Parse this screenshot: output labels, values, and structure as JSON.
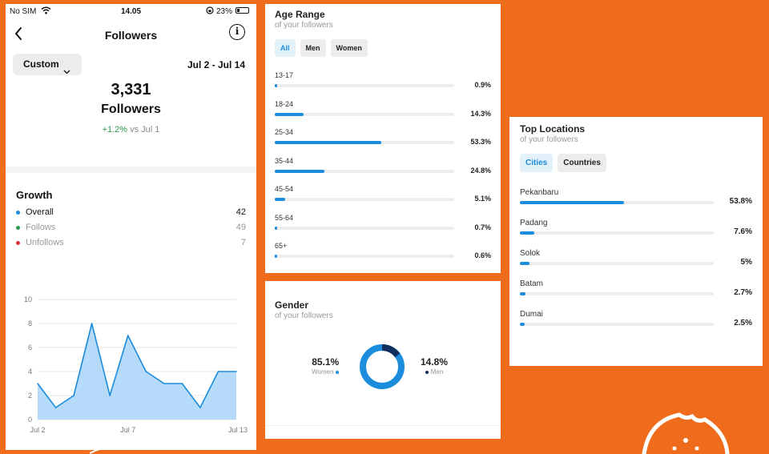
{
  "status_bar": {
    "carrier": "No SIM",
    "time": "14.05",
    "battery": "23%"
  },
  "header": {
    "title": "Followers"
  },
  "filter": {
    "range_button": "Custom",
    "date_range": "Jul 2 - Jul 14"
  },
  "summary": {
    "count": "3,331",
    "label": "Followers",
    "change": "+1.2%",
    "change_suffix": "vs Jul 1"
  },
  "growth": {
    "title": "Growth",
    "legend": [
      {
        "name": "Overall",
        "value": "42",
        "color": "#1b8ddc"
      },
      {
        "name": "Follows",
        "value": "49",
        "color": "#2e9a4e"
      },
      {
        "name": "Unfollows",
        "value": "7",
        "color": "#e0323d"
      }
    ]
  },
  "chart_data": {
    "type": "area",
    "x": [
      "Jul 2",
      "Jul 3",
      "Jul 4",
      "Jul 5",
      "Jul 6",
      "Jul 7",
      "Jul 8",
      "Jul 9",
      "Jul 10",
      "Jul 11",
      "Jul 12",
      "Jul 13"
    ],
    "values": [
      3,
      1,
      2,
      8,
      2,
      7,
      4,
      3,
      3,
      1,
      4,
      4
    ],
    "xtick_labels": [
      "Jul 2",
      "Jul 7",
      "Jul 13"
    ],
    "ytick_labels": [
      "0",
      "2",
      "4",
      "6",
      "8",
      "10"
    ],
    "ylim": [
      0,
      10
    ],
    "grid": true,
    "color": "#1b8ddc",
    "fill": "#b5dafa"
  },
  "age": {
    "title": "Age Range",
    "subtitle": "of your followers",
    "tabs": [
      "All",
      "Men",
      "Women"
    ],
    "rows": [
      {
        "label": "13-17",
        "pct_text": "0.9%",
        "pct": 0.9
      },
      {
        "label": "18-24",
        "pct_text": "14.3%",
        "pct": 14.3
      },
      {
        "label": "25-34",
        "pct_text": "53.3%",
        "pct": 53.3
      },
      {
        "label": "35-44",
        "pct_text": "24.8%",
        "pct": 24.8
      },
      {
        "label": "45-54",
        "pct_text": "5.1%",
        "pct": 5.1
      },
      {
        "label": "55-64",
        "pct_text": "0.7%",
        "pct": 0.7
      },
      {
        "label": "65+",
        "pct_text": "0.6%",
        "pct": 0.6
      }
    ]
  },
  "gender": {
    "title": "Gender",
    "subtitle": "of your followers",
    "women": {
      "pct_text": "85.1%",
      "label": "Women",
      "pct": 85.1,
      "color": "#1b8ddc"
    },
    "men": {
      "pct_text": "14.8%",
      "label": "Men",
      "pct": 14.8,
      "color": "#0f2f5f"
    }
  },
  "locations": {
    "title": "Top Locations",
    "subtitle": "of your followers",
    "tabs": [
      "Cities",
      "Countries"
    ],
    "rows": [
      {
        "label": "Pekanbaru",
        "pct_text": "53.8%",
        "pct": 53.8
      },
      {
        "label": "Padang",
        "pct_text": "7.6%",
        "pct": 7.6
      },
      {
        "label": "Solok",
        "pct_text": "5%",
        "pct": 5
      },
      {
        "label": "Batam",
        "pct_text": "2.7%",
        "pct": 2.7
      },
      {
        "label": "Dumai",
        "pct_text": "2.5%",
        "pct": 2.5
      }
    ]
  }
}
